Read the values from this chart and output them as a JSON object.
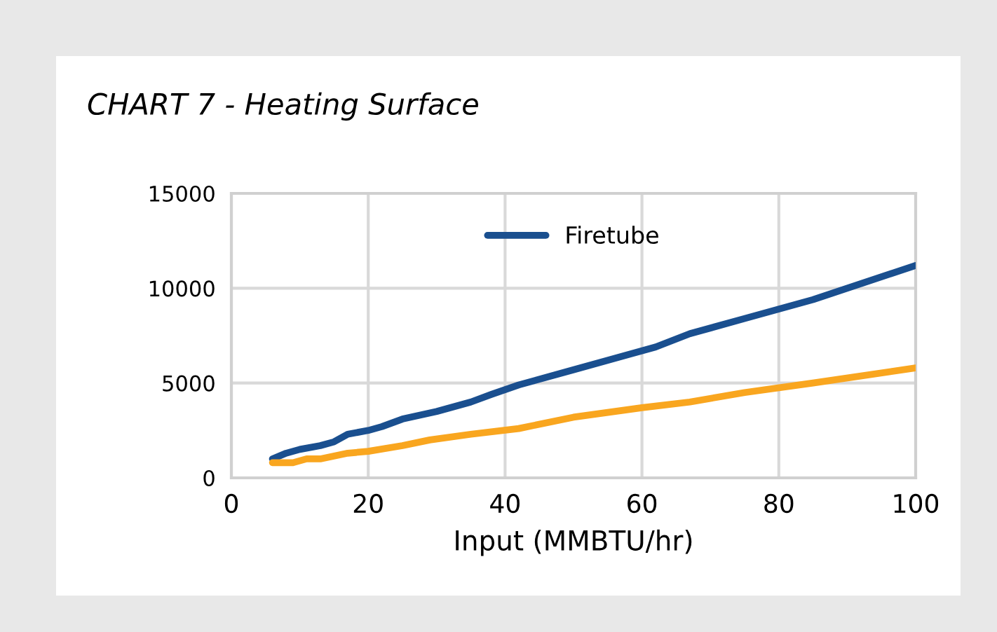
{
  "chart_data": {
    "type": "line",
    "title": "CHART 7 - Heating Surface",
    "xlabel": "Input (MMBTU/hr)",
    "xlim": [
      0,
      100
    ],
    "xticks": [
      0,
      20,
      40,
      60,
      80,
      100
    ],
    "ylim": [
      0,
      15000
    ],
    "yticks": [
      0,
      5000,
      10000,
      15000
    ],
    "grid": true,
    "legend": "top",
    "marker": "none",
    "line_style": "solid",
    "series": [
      {
        "name": "Firetube",
        "color": "#1a4f8f",
        "x": [
          6,
          8,
          10,
          13,
          15,
          17,
          20,
          22,
          25,
          30,
          35,
          38,
          42,
          50,
          62,
          67,
          75,
          85,
          100
        ],
        "values": [
          1000,
          1300,
          1500,
          1700,
          1900,
          2300,
          2500,
          2700,
          3100,
          3500,
          4000,
          4400,
          4900,
          5700,
          6900,
          7600,
          8400,
          9400,
          11200
        ]
      },
      {
        "color": "#f9a61f",
        "x": [
          6,
          9,
          11,
          13,
          17,
          20,
          25,
          29,
          35,
          42,
          50,
          60,
          67,
          75,
          85,
          100
        ],
        "values": [
          800,
          800,
          1000,
          1000,
          1300,
          1400,
          1700,
          2000,
          2300,
          2600,
          3200,
          3700,
          4000,
          4500,
          5000,
          5800
        ]
      }
    ]
  }
}
